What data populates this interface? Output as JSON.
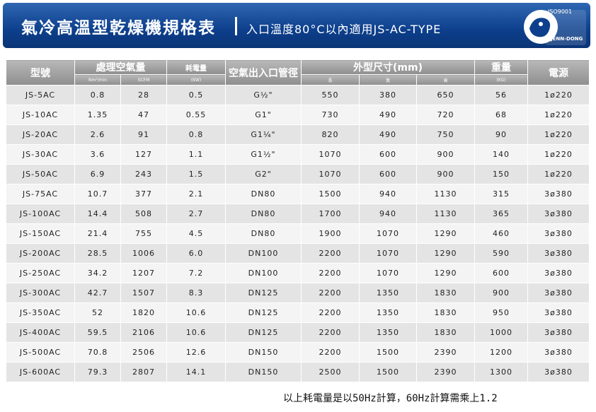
{
  "header": {
    "title": "氣冷高溫型乾燥機規格表",
    "subtitle": "入口溫度80°C以內適用JS-AC-TYPE",
    "logo_cert": "ISO9001",
    "logo_brand": "JENN-DONG"
  },
  "table": {
    "columns": {
      "model": "型號",
      "air": "處理空氣量",
      "air_unit1": "Nm³/min",
      "air_unit2": "SCFM",
      "power": "耗電量",
      "power_unit": "(KW)",
      "pipe": "空氣出入口管徑",
      "size": "外型尺寸(mm)",
      "length": "長",
      "width": "寬",
      "height": "高",
      "weight": "重量",
      "weight_unit": "(KG)",
      "source": "電源"
    },
    "rows": [
      [
        "JS-5AC",
        "0.8",
        "28",
        "0.5",
        "G½\"",
        "550",
        "380",
        "650",
        "56",
        "1ø220"
      ],
      [
        "JS-10AC",
        "1.35",
        "47",
        "0.55",
        "G1\"",
        "730",
        "490",
        "720",
        "68",
        "1ø220"
      ],
      [
        "JS-20AC",
        "2.6",
        "91",
        "0.8",
        "G1¼\"",
        "820",
        "490",
        "750",
        "90",
        "1ø220"
      ],
      [
        "JS-30AC",
        "3.6",
        "127",
        "1.1",
        "G1½\"",
        "1070",
        "600",
        "900",
        "140",
        "1ø220"
      ],
      [
        "JS-50AC",
        "6.9",
        "243",
        "1.5",
        "G2\"",
        "1070",
        "600",
        "900",
        "150",
        "1ø220"
      ],
      [
        "JS-75AC",
        "10.7",
        "377",
        "2.1",
        "DN80",
        "1500",
        "940",
        "1130",
        "315",
        "3ø380"
      ],
      [
        "JS-100AC",
        "14.4",
        "508",
        "2.7",
        "DN80",
        "1700",
        "940",
        "1130",
        "365",
        "3ø380"
      ],
      [
        "JS-150AC",
        "21.4",
        "755",
        "4.5",
        "DN80",
        "1900",
        "1070",
        "1290",
        "460",
        "3ø380"
      ],
      [
        "JS-200AC",
        "28.5",
        "1006",
        "6.0",
        "DN100",
        "2200",
        "1070",
        "1290",
        "590",
        "3ø380"
      ],
      [
        "JS-250AC",
        "34.2",
        "1207",
        "7.2",
        "DN100",
        "2200",
        "1070",
        "1290",
        "600",
        "3ø380"
      ],
      [
        "JS-300AC",
        "42.7",
        "1507",
        "8.3",
        "DN125",
        "2200",
        "1350",
        "1830",
        "900",
        "3ø380"
      ],
      [
        "JS-350AC",
        "52",
        "1820",
        "10.6",
        "DN125",
        "2200",
        "1350",
        "1830",
        "950",
        "3ø380"
      ],
      [
        "JS-400AC",
        "59.5",
        "2106",
        "10.6",
        "DN125",
        "2200",
        "1350",
        "1830",
        "1000",
        "3ø380"
      ],
      [
        "JS-500AC",
        "70.8",
        "2506",
        "12.6",
        "DN150",
        "2200",
        "1500",
        "2390",
        "1200",
        "3ø380"
      ],
      [
        "JS-600AC",
        "79.3",
        "2807",
        "14.1",
        "DN150",
        "2500",
        "1500",
        "2390",
        "1300",
        "3ø380"
      ]
    ]
  },
  "footer": {
    "note": "以上耗電量是以50Hz計算，60Hz計算需乘上1.2"
  }
}
